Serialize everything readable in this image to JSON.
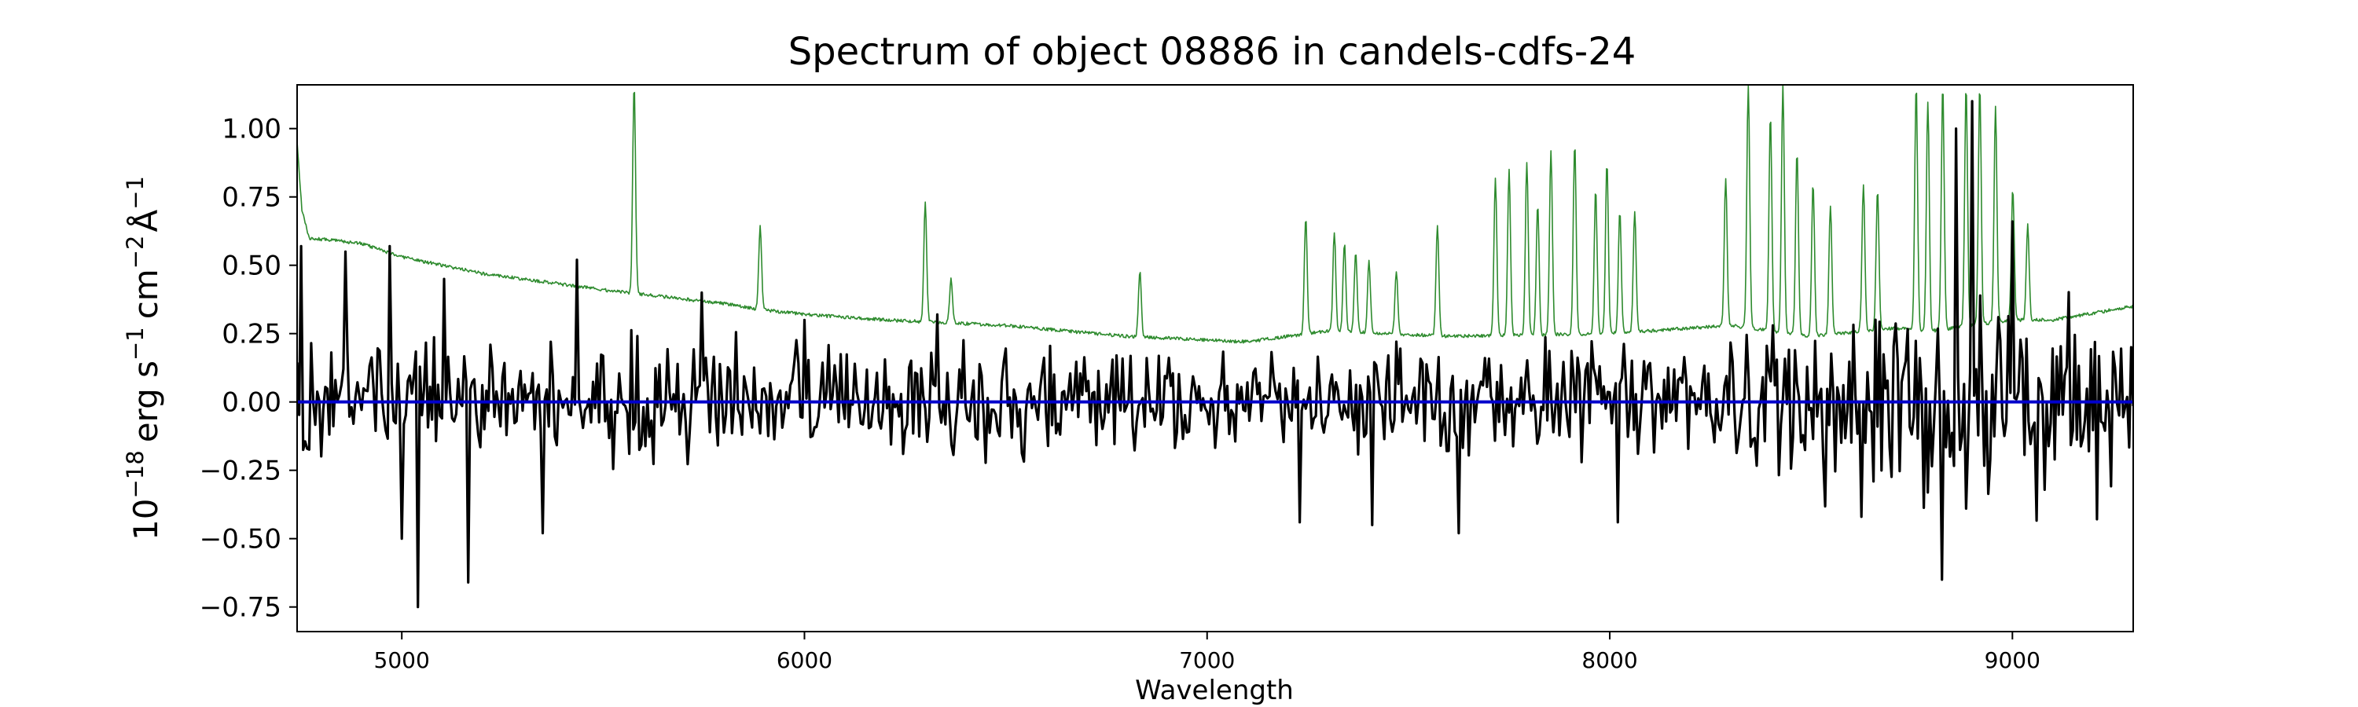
{
  "chart_data": {
    "type": "line",
    "title": "Spectrum of object 08886 in candels-cdfs-24",
    "xlabel": "Wavelength",
    "ylabel": {
      "base": "10",
      "base_exp": "−18",
      "unit1": "erg s",
      "exp1": "−1",
      "unit2": "cm",
      "exp2": "−2",
      "unit3": "Å",
      "exp3": "−1"
    },
    "xlim": [
      4740,
      9300
    ],
    "ylim": [
      -0.84,
      1.16
    ],
    "xticks": [
      5000,
      6000,
      7000,
      8000,
      9000
    ],
    "xtick_labels": [
      "5000",
      "6000",
      "7000",
      "8000",
      "9000"
    ],
    "yticks": [
      -0.75,
      -0.5,
      -0.25,
      0.0,
      0.25,
      0.5,
      0.75,
      1.0
    ],
    "ytick_labels": [
      "−0.75",
      "−0.50",
      "−0.25",
      "0.00",
      "0.25",
      "0.50",
      "0.75",
      "1.00"
    ],
    "grid": false,
    "legend": "none",
    "series": [
      {
        "role": "error spectrum",
        "color": "#2e8b2e",
        "continuum": [
          [
            4740,
            0.95
          ],
          [
            4752,
            0.7
          ],
          [
            4770,
            0.6
          ],
          [
            4900,
            0.58
          ],
          [
            5000,
            0.53
          ],
          [
            5200,
            0.47
          ],
          [
            5500,
            0.41
          ],
          [
            5800,
            0.36
          ],
          [
            5880,
            0.34
          ],
          [
            6000,
            0.32
          ],
          [
            6200,
            0.3
          ],
          [
            6500,
            0.28
          ],
          [
            6800,
            0.24
          ],
          [
            7100,
            0.22
          ],
          [
            7300,
            0.26
          ],
          [
            7600,
            0.24
          ],
          [
            8000,
            0.25
          ],
          [
            8200,
            0.27
          ],
          [
            8300,
            0.28
          ],
          [
            8500,
            0.24
          ],
          [
            8700,
            0.27
          ],
          [
            8800,
            0.26
          ],
          [
            9000,
            0.3
          ],
          [
            9100,
            0.3
          ],
          [
            9300,
            0.35
          ]
        ],
        "emission_lines": [
          [
            5577,
            1.16
          ],
          [
            5890,
            0.64
          ],
          [
            6300,
            0.73
          ],
          [
            6364,
            0.45
          ],
          [
            6833,
            0.48
          ],
          [
            7245,
            0.68
          ],
          [
            7316,
            0.62
          ],
          [
            7341,
            0.58
          ],
          [
            7369,
            0.55
          ],
          [
            7402,
            0.52
          ],
          [
            7470,
            0.48
          ],
          [
            7572,
            0.65
          ],
          [
            7716,
            0.82
          ],
          [
            7750,
            0.85
          ],
          [
            7794,
            0.88
          ],
          [
            7821,
            0.72
          ],
          [
            7854,
            0.92
          ],
          [
            7913,
            0.95
          ],
          [
            7965,
            0.78
          ],
          [
            7993,
            0.88
          ],
          [
            8025,
            0.7
          ],
          [
            8062,
            0.7
          ],
          [
            8288,
            0.82
          ],
          [
            8344,
            1.16
          ],
          [
            8399,
            1.05
          ],
          [
            8430,
            1.16
          ],
          [
            8465,
            0.92
          ],
          [
            8505,
            0.8
          ],
          [
            8548,
            0.72
          ],
          [
            8630,
            0.8
          ],
          [
            8665,
            0.78
          ],
          [
            8761,
            1.16
          ],
          [
            8790,
            1.1
          ],
          [
            8827,
            1.16
          ],
          [
            8885,
            1.16
          ],
          [
            8919,
            1.16
          ],
          [
            8958,
            1.08
          ],
          [
            9001,
            0.78
          ],
          [
            9038,
            0.65
          ]
        ]
      },
      {
        "role": "flux",
        "color": "#000000",
        "noise_sigma": [
          [
            4740,
            0.2
          ],
          [
            7200,
            0.17
          ],
          [
            8300,
            0.22
          ],
          [
            8800,
            0.38
          ],
          [
            9300,
            0.28
          ]
        ],
        "spikes": [
          [
            4752,
            0.57
          ],
          [
            4862,
            0.55
          ],
          [
            4970,
            0.57
          ],
          [
            5000,
            -0.5
          ],
          [
            5042,
            -0.75
          ],
          [
            5103,
            0.45
          ],
          [
            5163,
            -0.66
          ],
          [
            5435,
            0.52
          ],
          [
            5350,
            -0.48
          ],
          [
            5745,
            0.4
          ],
          [
            6000,
            0.3
          ],
          [
            6330,
            0.32
          ],
          [
            7230,
            -0.44
          ],
          [
            7410,
            -0.45
          ],
          [
            7625,
            -0.48
          ],
          [
            8020,
            -0.44
          ],
          [
            8625,
            -0.42
          ],
          [
            8825,
            -0.65
          ],
          [
            8860,
            1.0
          ],
          [
            8900,
            1.1
          ],
          [
            9000,
            0.66
          ]
        ]
      },
      {
        "role": "zero line",
        "color": "#0000cc",
        "y": 0.0
      }
    ]
  }
}
